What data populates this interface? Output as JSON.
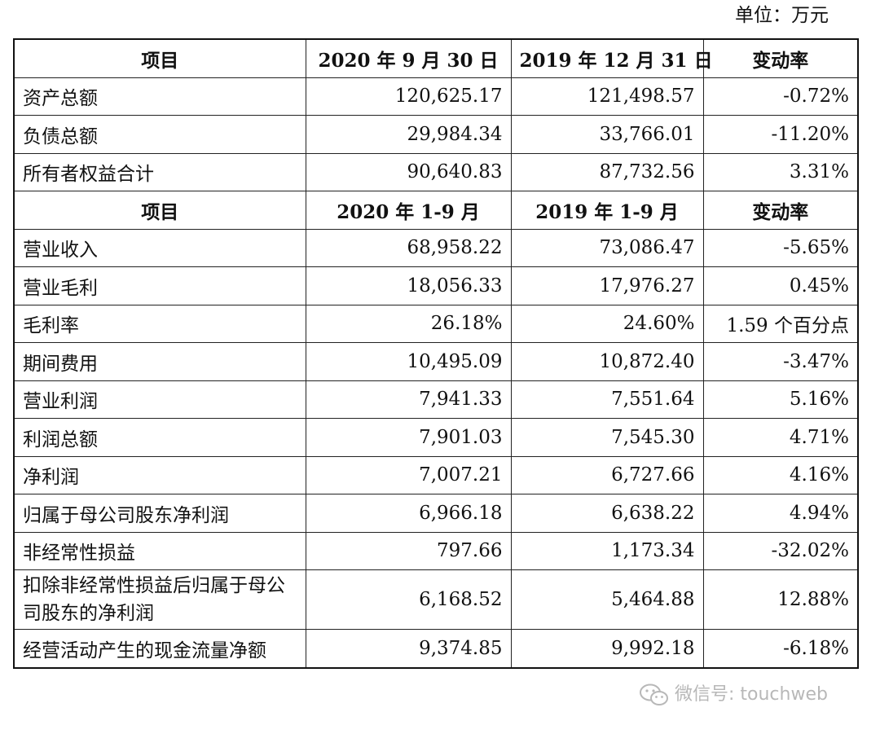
{
  "unit": "单位：万元",
  "balance": {
    "headers": [
      "项目",
      "2020 年 9 月 30 日",
      "2019 年 12 月 31 日",
      "变动率"
    ],
    "rows": [
      {
        "label": "资产总额",
        "v1": "120,625.17",
        "v2": "121,498.57",
        "change": "-0.72%"
      },
      {
        "label": "负债总额",
        "v1": "29,984.34",
        "v2": "33,766.01",
        "change": "-11.20%"
      },
      {
        "label": "所有者权益合计",
        "v1": "90,640.83",
        "v2": "87,732.56",
        "change": "3.31%"
      }
    ]
  },
  "income": {
    "headers": [
      "项目",
      "2020 年 1-9 月",
      "2019 年 1-9 月",
      "变动率"
    ],
    "rows": [
      {
        "label": "营业收入",
        "v1": "68,958.22",
        "v2": "73,086.47",
        "change": "-5.65%"
      },
      {
        "label": "营业毛利",
        "v1": "18,056.33",
        "v2": "17,976.27",
        "change": "0.45%"
      },
      {
        "label": "毛利率",
        "v1": "26.18%",
        "v2": "24.60%",
        "change": "1.59 个百分点"
      },
      {
        "label": "期间费用",
        "v1": "10,495.09",
        "v2": "10,872.40",
        "change": "-3.47%"
      },
      {
        "label": "营业利润",
        "v1": "7,941.33",
        "v2": "7,551.64",
        "change": "5.16%"
      },
      {
        "label": "利润总额",
        "v1": "7,901.03",
        "v2": "7,545.30",
        "change": "4.71%"
      },
      {
        "label": "净利润",
        "v1": "7,007.21",
        "v2": "6,727.66",
        "change": "4.16%"
      },
      {
        "label": "归属于母公司股东净利润",
        "v1": "6,966.18",
        "v2": "6,638.22",
        "change": "4.94%"
      },
      {
        "label": "非经常性损益",
        "v1": "797.66",
        "v2": "1,173.34",
        "change": "-32.02%"
      },
      {
        "label": "扣除非经常性损益后归属于母公司股东的净利润",
        "v1": "6,168.52",
        "v2": "5,464.88",
        "change": "12.88%"
      },
      {
        "label": "经营活动产生的现金流量净额",
        "v1": "9,374.85",
        "v2": "9,992.18",
        "change": "-6.18%"
      }
    ]
  },
  "watermark": {
    "icon": "wechat-icon",
    "text": "微信号: touchweb"
  }
}
